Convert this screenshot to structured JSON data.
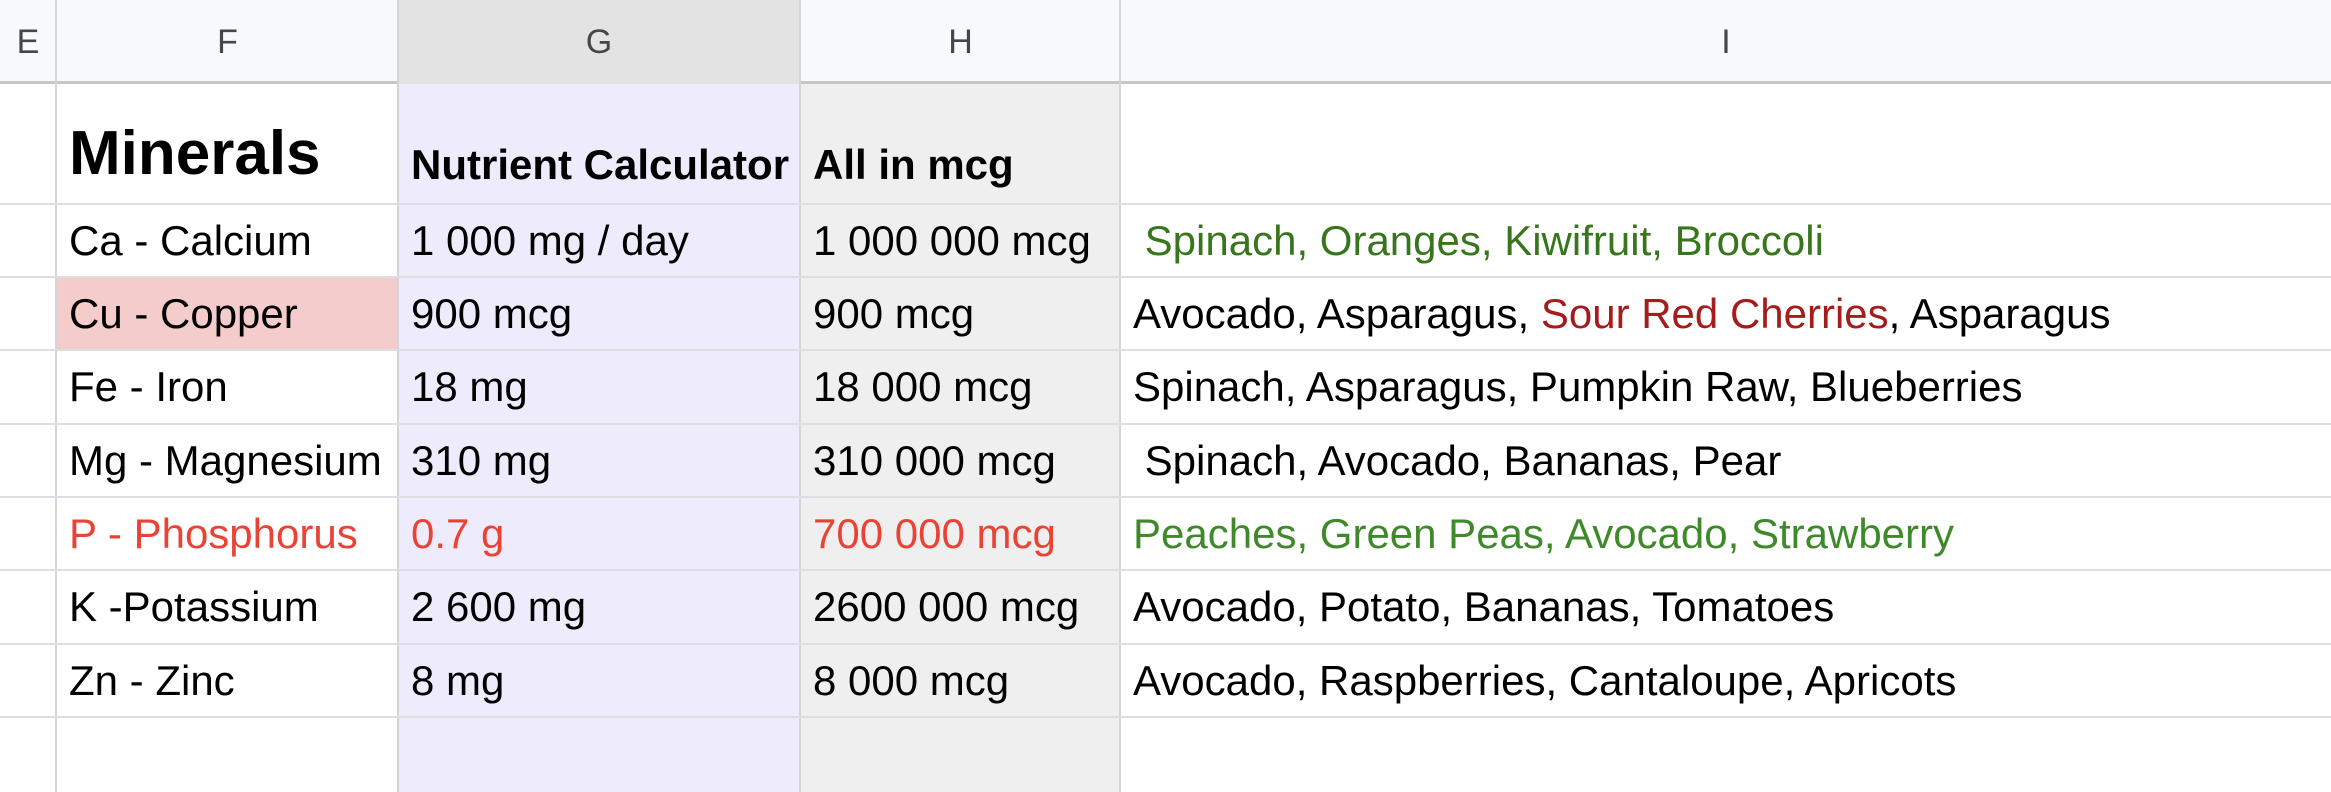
{
  "columns": [
    "E",
    "F",
    "G",
    "H",
    "I"
  ],
  "active_column": "G",
  "colors": {
    "col_g_fill": "#eeecfc",
    "col_h_fill": "#efefef",
    "highlight_fill": "#f4cccc",
    "red_text": "#ea4335",
    "green_text": "#38761d",
    "dark_red_text": "#a61c1c"
  },
  "rows": [
    {
      "f": "Minerals",
      "g": "Nutrient Calculator",
      "h": "All in mcg",
      "i": ""
    },
    {
      "f": "Ca - Calcium",
      "g": "1 000 mg / day",
      "h": "1 000 000 mcg",
      "i": " Spinach, Oranges, Kiwifruit, Broccoli"
    },
    {
      "f": "Cu - Copper",
      "g": "900 mcg",
      "h": "900 mcg",
      "i_parts": [
        "Avocado, Asparagus, ",
        "Sour Red Cherries",
        ", Asparagus"
      ]
    },
    {
      "f": "Fe - Iron",
      "g": "18 mg",
      "h": "18 000 mcg",
      "i": "Spinach, Asparagus, Pumpkin Raw, Blueberries"
    },
    {
      "f": "Mg - Magnesium",
      "g": "310 mg",
      "h": "310 000 mcg",
      "i": " Spinach, Avocado, Bananas, Pear"
    },
    {
      "f": "P - Phosphorus",
      "g": "0.7 g",
      "h": "700 000 mcg",
      "i": "Peaches, Green Peas, Avocado, Strawberry"
    },
    {
      "f": "K -Potassium",
      "g": "2 600 mg",
      "h": "2600 000 mcg",
      "i": "Avocado, Potato, Bananas, Tomatoes"
    },
    {
      "f": "Zn - Zinc",
      "g": "8 mg",
      "h": "8 000 mcg",
      "i": "Avocado, Raspberries, Cantaloupe, Apricots"
    }
  ]
}
